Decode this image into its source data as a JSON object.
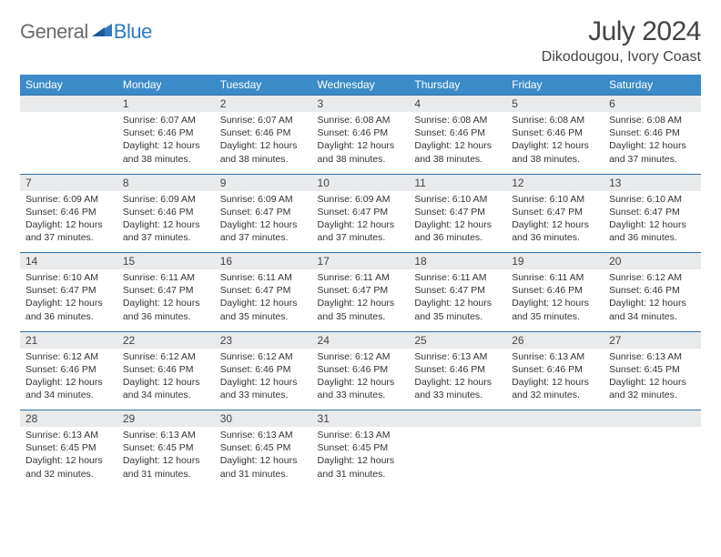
{
  "brand": {
    "part1": "General",
    "part2": "Blue"
  },
  "title": "July 2024",
  "location": "Dikodougou, Ivory Coast",
  "colors": {
    "header_bg": "#3b8bc9",
    "header_text": "#ffffff",
    "row_border": "#2f6fa8",
    "daynum_bg": "#e9eaec",
    "text": "#333333",
    "logo_gray": "#6b6b6b",
    "logo_blue": "#2f7ac0"
  },
  "weekdays": [
    "Sunday",
    "Monday",
    "Tuesday",
    "Wednesday",
    "Thursday",
    "Friday",
    "Saturday"
  ],
  "weeks": [
    {
      "nums": [
        "",
        "1",
        "2",
        "3",
        "4",
        "5",
        "6"
      ],
      "cells": [
        null,
        {
          "sunrise": "6:07 AM",
          "sunset": "6:46 PM",
          "daylight": "12 hours and 38 minutes."
        },
        {
          "sunrise": "6:07 AM",
          "sunset": "6:46 PM",
          "daylight": "12 hours and 38 minutes."
        },
        {
          "sunrise": "6:08 AM",
          "sunset": "6:46 PM",
          "daylight": "12 hours and 38 minutes."
        },
        {
          "sunrise": "6:08 AM",
          "sunset": "6:46 PM",
          "daylight": "12 hours and 38 minutes."
        },
        {
          "sunrise": "6:08 AM",
          "sunset": "6:46 PM",
          "daylight": "12 hours and 38 minutes."
        },
        {
          "sunrise": "6:08 AM",
          "sunset": "6:46 PM",
          "daylight": "12 hours and 37 minutes."
        }
      ]
    },
    {
      "nums": [
        "7",
        "8",
        "9",
        "10",
        "11",
        "12",
        "13"
      ],
      "cells": [
        {
          "sunrise": "6:09 AM",
          "sunset": "6:46 PM",
          "daylight": "12 hours and 37 minutes."
        },
        {
          "sunrise": "6:09 AM",
          "sunset": "6:46 PM",
          "daylight": "12 hours and 37 minutes."
        },
        {
          "sunrise": "6:09 AM",
          "sunset": "6:47 PM",
          "daylight": "12 hours and 37 minutes."
        },
        {
          "sunrise": "6:09 AM",
          "sunset": "6:47 PM",
          "daylight": "12 hours and 37 minutes."
        },
        {
          "sunrise": "6:10 AM",
          "sunset": "6:47 PM",
          "daylight": "12 hours and 36 minutes."
        },
        {
          "sunrise": "6:10 AM",
          "sunset": "6:47 PM",
          "daylight": "12 hours and 36 minutes."
        },
        {
          "sunrise": "6:10 AM",
          "sunset": "6:47 PM",
          "daylight": "12 hours and 36 minutes."
        }
      ]
    },
    {
      "nums": [
        "14",
        "15",
        "16",
        "17",
        "18",
        "19",
        "20"
      ],
      "cells": [
        {
          "sunrise": "6:10 AM",
          "sunset": "6:47 PM",
          "daylight": "12 hours and 36 minutes."
        },
        {
          "sunrise": "6:11 AM",
          "sunset": "6:47 PM",
          "daylight": "12 hours and 36 minutes."
        },
        {
          "sunrise": "6:11 AM",
          "sunset": "6:47 PM",
          "daylight": "12 hours and 35 minutes."
        },
        {
          "sunrise": "6:11 AM",
          "sunset": "6:47 PM",
          "daylight": "12 hours and 35 minutes."
        },
        {
          "sunrise": "6:11 AM",
          "sunset": "6:47 PM",
          "daylight": "12 hours and 35 minutes."
        },
        {
          "sunrise": "6:11 AM",
          "sunset": "6:46 PM",
          "daylight": "12 hours and 35 minutes."
        },
        {
          "sunrise": "6:12 AM",
          "sunset": "6:46 PM",
          "daylight": "12 hours and 34 minutes."
        }
      ]
    },
    {
      "nums": [
        "21",
        "22",
        "23",
        "24",
        "25",
        "26",
        "27"
      ],
      "cells": [
        {
          "sunrise": "6:12 AM",
          "sunset": "6:46 PM",
          "daylight": "12 hours and 34 minutes."
        },
        {
          "sunrise": "6:12 AM",
          "sunset": "6:46 PM",
          "daylight": "12 hours and 34 minutes."
        },
        {
          "sunrise": "6:12 AM",
          "sunset": "6:46 PM",
          "daylight": "12 hours and 33 minutes."
        },
        {
          "sunrise": "6:12 AM",
          "sunset": "6:46 PM",
          "daylight": "12 hours and 33 minutes."
        },
        {
          "sunrise": "6:13 AM",
          "sunset": "6:46 PM",
          "daylight": "12 hours and 33 minutes."
        },
        {
          "sunrise": "6:13 AM",
          "sunset": "6:46 PM",
          "daylight": "12 hours and 32 minutes."
        },
        {
          "sunrise": "6:13 AM",
          "sunset": "6:45 PM",
          "daylight": "12 hours and 32 minutes."
        }
      ]
    },
    {
      "nums": [
        "28",
        "29",
        "30",
        "31",
        "",
        "",
        ""
      ],
      "cells": [
        {
          "sunrise": "6:13 AM",
          "sunset": "6:45 PM",
          "daylight": "12 hours and 32 minutes."
        },
        {
          "sunrise": "6:13 AM",
          "sunset": "6:45 PM",
          "daylight": "12 hours and 31 minutes."
        },
        {
          "sunrise": "6:13 AM",
          "sunset": "6:45 PM",
          "daylight": "12 hours and 31 minutes."
        },
        {
          "sunrise": "6:13 AM",
          "sunset": "6:45 PM",
          "daylight": "12 hours and 31 minutes."
        },
        null,
        null,
        null
      ]
    }
  ],
  "labels": {
    "sunrise": "Sunrise: ",
    "sunset": "Sunset: ",
    "daylight": "Daylight: "
  }
}
